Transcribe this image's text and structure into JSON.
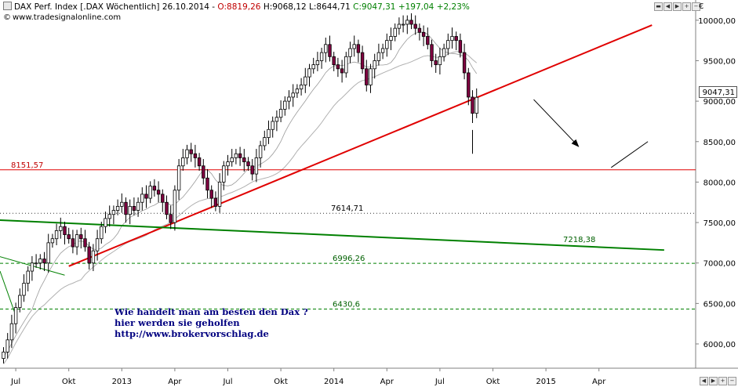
{
  "header": {
    "instrument": "DAX Perf. Index [.DAX",
    "period": "Wöchentlich]",
    "date": "26.10.2014",
    "open": "O:8819,26",
    "high": "H:9068,12",
    "low": "L:8644,71",
    "close": "C:9047,31",
    "change": "+197,04",
    "change_pct": "+2,23%",
    "website": "www.tradesignalonline.com",
    "copyright": "©"
  },
  "currency": "€",
  "price_box": "9047,31",
  "note": {
    "line1": "Wie handelt man am besten  den Dax ?",
    "line2": "hier werden sie geholfen",
    "line3": "http://www.brokervorschlag.de"
  },
  "colors": {
    "candle_up": "#ffffff",
    "candle_down": "#800040",
    "trend_red": "#e00000",
    "trend_green": "#008000",
    "hline_red": "#e00000",
    "hline_green": "#008000",
    "ma": "#b0b0b0",
    "negative_text": "#c00000",
    "positive_text": "#008000",
    "note_text": "#000080"
  },
  "chart_data": {
    "type": "candlestick",
    "title": "DAX Perf. Index [.DAX Wöchentlich]",
    "ylim": [
      5700,
      10250
    ],
    "yticks": [
      6000,
      6500,
      7000,
      7500,
      8000,
      8500,
      9000,
      9500,
      10000
    ],
    "ytick_labels": [
      "6000,00",
      "6500,00",
      "7000,00",
      "7500,00",
      "8000,00",
      "8500,00",
      "9000,00",
      "9500,00",
      "10000,00"
    ],
    "xtick_labels": [
      "Jul",
      "Okt",
      "2013",
      "Apr",
      "Jul",
      "Okt",
      "2014",
      "Apr",
      "Jul",
      "Okt",
      "2015",
      "Apr"
    ],
    "xtick_weeks": [
      3,
      16,
      29,
      42,
      55,
      68,
      81,
      94,
      107,
      120,
      133,
      146
    ],
    "candles_start_week": 0,
    "close_series": [
      5900,
      6050,
      6250,
      6450,
      6600,
      6750,
      6900,
      7000,
      7000,
      7050,
      7000,
      7250,
      7300,
      7400,
      7450,
      7350,
      7300,
      7200,
      7350,
      7300,
      7200,
      7000,
      7150,
      7300,
      7450,
      7550,
      7600,
      7650,
      7700,
      7750,
      7600,
      7700,
      7650,
      7750,
      7850,
      7800,
      7950,
      7900,
      7850,
      7750,
      7600,
      7500,
      7900,
      8200,
      8300,
      8400,
      8350,
      8300,
      8200,
      8050,
      7900,
      7800,
      7700,
      8000,
      8200,
      8250,
      8300,
      8350,
      8300,
      8250,
      8200,
      8100,
      8300,
      8450,
      8550,
      8650,
      8750,
      8800,
      8900,
      9000,
      9050,
      9100,
      9150,
      9200,
      9300,
      9400,
      9450,
      9500,
      9600,
      9700,
      9550,
      9450,
      9400,
      9350,
      9550,
      9650,
      9700,
      9600,
      9400,
      9200,
      9400,
      9500,
      9600,
      9650,
      9750,
      9800,
      9900,
      9950,
      9950,
      10000,
      9950,
      9900,
      9850,
      9800,
      9700,
      9500,
      9450,
      9550,
      9650,
      9750,
      9800,
      9750,
      9600,
      9350,
      9050,
      8850,
      9047.31
    ],
    "horizontal_levels": [
      {
        "label": "8151,57",
        "value": 8151.57,
        "style": "solid",
        "color": "red"
      },
      {
        "label": "7614,71",
        "value": 7614.71,
        "style": "dotted",
        "color": "black"
      },
      {
        "label": "7218,38",
        "value": 7218.38,
        "style": "trendline",
        "color": "green"
      },
      {
        "label": "6996,26",
        "value": 6996.26,
        "style": "dashed",
        "color": "green"
      },
      {
        "label": "6430,6",
        "value": 6430.6,
        "style": "dashed",
        "color": "green"
      }
    ],
    "trendlines": [
      {
        "name": "support",
        "color": "red",
        "from": {
          "week": 16,
          "value": 6960
        },
        "to": {
          "week": 159,
          "value": 9940
        }
      },
      {
        "name": "long-term",
        "color": "green",
        "from": {
          "week": -1,
          "value": 7530
        },
        "to": {
          "week": 162,
          "value": 7160
        }
      },
      {
        "name": "short",
        "color": "green",
        "from": {
          "week": -1,
          "value": 7080
        },
        "to": {
          "week": 15,
          "value": 6850
        }
      }
    ],
    "arrows": [
      {
        "from": {
          "week": 130,
          "value": 9020
        },
        "to": {
          "week": 141,
          "value": 8440
        }
      },
      {
        "from": {
          "week": 149,
          "value": 8180
        },
        "to": {
          "week": 158,
          "value": 8500
        }
      }
    ]
  }
}
